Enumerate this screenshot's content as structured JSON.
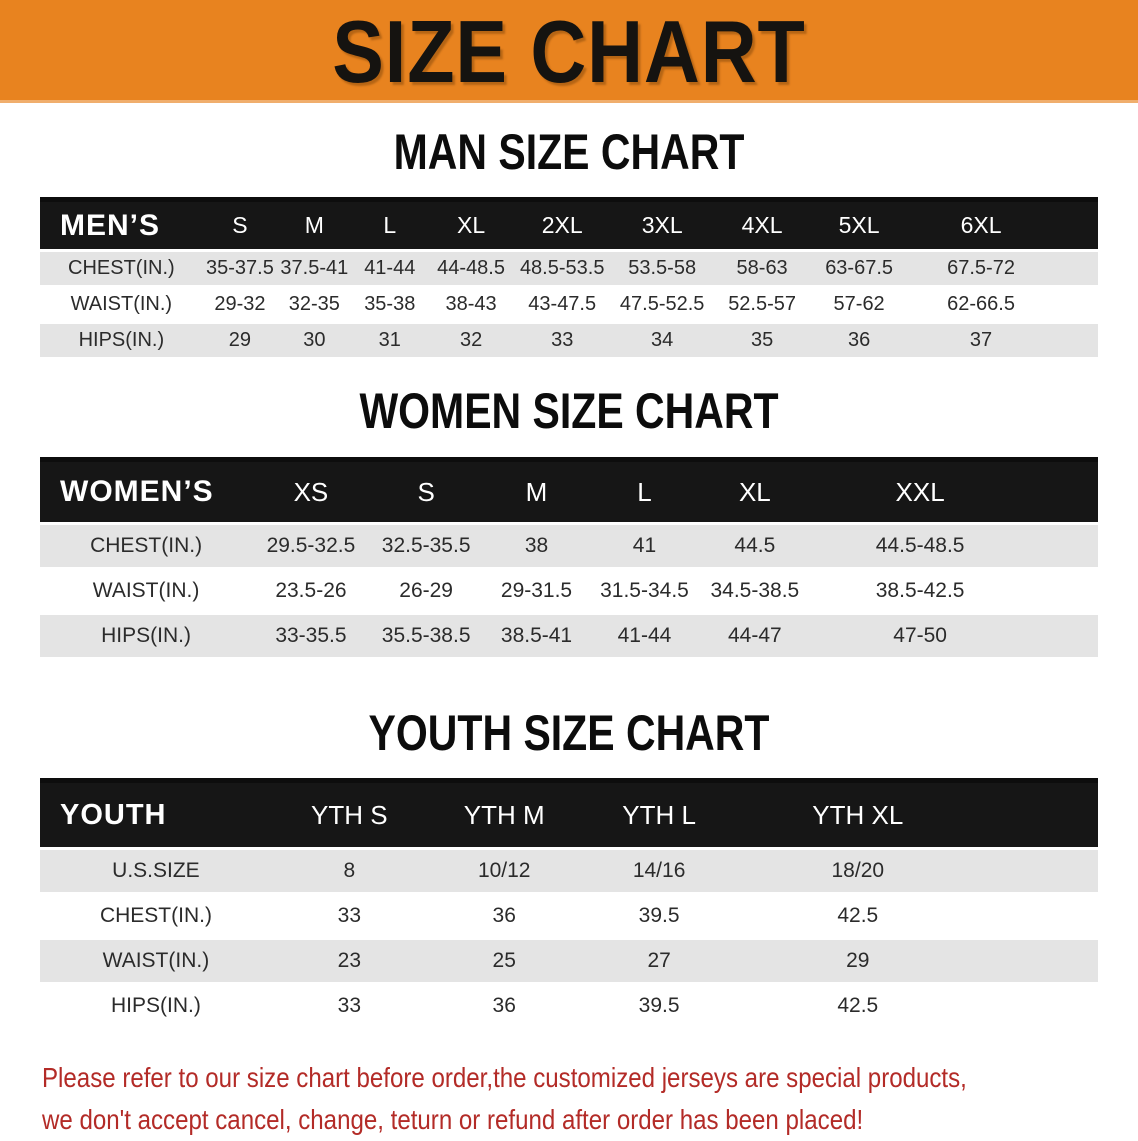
{
  "banner": {
    "title": "SIZE CHART"
  },
  "colors": {
    "banner_orange": "#E8831F",
    "header_black": "#161616",
    "row_gray": "#E4E4E4",
    "disclaimer_red": "#B32B27"
  },
  "sections": [
    {
      "heading": "MAN SIZE CHART",
      "corner_label": "MEN’S",
      "columns": [
        "S",
        "M",
        "L",
        "XL",
        "2XL",
        "3XL",
        "4XL",
        "5XL",
        "6XL"
      ],
      "rows": [
        {
          "label": "CHEST(IN.)",
          "values": [
            "35-37.5",
            "37.5-41",
            "41-44",
            "44-48.5",
            "48.5-53.5",
            "53.5-58",
            "58-63",
            "63-67.5",
            "67.5-72"
          ]
        },
        {
          "label": "WAIST(IN.)",
          "values": [
            "29-32",
            "32-35",
            "35-38",
            "38-43",
            "43-47.5",
            "47.5-52.5",
            "52.5-57",
            "57-62",
            "62-66.5"
          ]
        },
        {
          "label": "HIPS(IN.)",
          "values": [
            "29",
            "30",
            "31",
            "32",
            "33",
            "34",
            "35",
            "36",
            "37"
          ]
        }
      ]
    },
    {
      "heading": "WOMEN SIZE CHART",
      "corner_label": "WOMEN’S",
      "columns": [
        "XS",
        "S",
        "M",
        "L",
        "XL",
        "XXL"
      ],
      "rows": [
        {
          "label": "CHEST(IN.)",
          "values": [
            "29.5-32.5",
            "32.5-35.5",
            "38",
            "41",
            "44.5",
            "44.5-48.5"
          ]
        },
        {
          "label": "WAIST(IN.)",
          "values": [
            "23.5-26",
            "26-29",
            "29-31.5",
            "31.5-34.5",
            "34.5-38.5",
            "38.5-42.5"
          ]
        },
        {
          "label": "HIPS(IN.)",
          "values": [
            "33-35.5",
            "35.5-38.5",
            "38.5-41",
            "41-44",
            "44-47",
            "47-50"
          ]
        }
      ]
    },
    {
      "heading": "YOUTH SIZE CHART",
      "corner_label": "YOUTH",
      "columns": [
        "YTH S",
        "YTH M",
        "YTH L",
        "YTH XL"
      ],
      "rows": [
        {
          "label": "U.S.SIZE",
          "values": [
            "8",
            "10/12",
            "14/16",
            "18/20"
          ]
        },
        {
          "label": "CHEST(IN.)",
          "values": [
            "33",
            "36",
            "39.5",
            "42.5"
          ]
        },
        {
          "label": "WAIST(IN.)",
          "values": [
            "23",
            "25",
            "27",
            "29"
          ]
        },
        {
          "label": "HIPS(IN.)",
          "values": [
            "33",
            "36",
            "39.5",
            "42.5"
          ]
        }
      ]
    }
  ],
  "disclaimer": {
    "lines": [
      "Please refer to our size chart before order,the customized jerseys are special products,",
      "we don't accept cancel, change, teturn or refund after order has been placed!"
    ]
  }
}
